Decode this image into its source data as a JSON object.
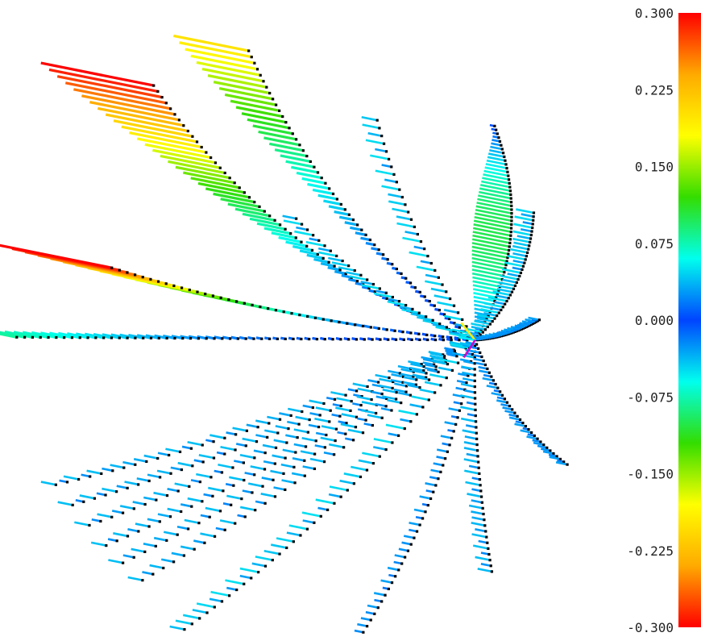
{
  "chart_data": {
    "type": "scatter",
    "title": "",
    "xlabel": "",
    "ylabel": "",
    "grid": false,
    "legend": "none",
    "origin": [
      0,
      0
    ],
    "xlim": [
      -8.5,
      2.6
    ],
    "ylim": [
      -5.2,
      5.6
    ],
    "colorbar": {
      "placement": "right",
      "range": [
        -0.3,
        0.3
      ],
      "ticks": [
        0.3,
        0.225,
        0.15,
        0.075,
        0.0,
        -0.075,
        -0.15,
        -0.225,
        -0.3
      ],
      "tick_labels": [
        "0.300",
        "0.225",
        "0.150",
        "0.075",
        "0.000",
        "-0.075",
        "-0.150",
        "-0.225",
        "-0.300"
      ],
      "colors": [
        "#ff0000",
        "#ffaa00",
        "#ffff00",
        "#33dd00",
        "#00ffee",
        "#0044ff",
        "#00ffee",
        "#33dd00",
        "#ffff00",
        "#ffaa00",
        "#ff0000"
      ]
    },
    "marker_color": "#000000",
    "origin_vectors": [
      {
        "dx": -0.25,
        "dy": 0.3,
        "color": "#ffee00"
      },
      {
        "dx": -0.3,
        "dy": 0.05,
        "color": "#00eeff"
      },
      {
        "dx": -0.2,
        "dy": -0.3,
        "color": "#cc00cc"
      }
    ],
    "series": [
      {
        "end": [
          -5.75,
          4.4
        ],
        "curve": 0.15,
        "n": 60,
        "vmax": 0.3,
        "mode": "tip",
        "wspread": 1.5
      },
      {
        "end": [
          -6.5,
          1.25
        ],
        "curve": 0.05,
        "n": 46,
        "vmax": 0.3,
        "mode": "tip",
        "wspread": 0.8
      },
      {
        "end": [
          -4.05,
          5.0
        ],
        "curve": 0.12,
        "n": 56,
        "vmax": 0.2,
        "mode": "tip",
        "wspread": 1.2
      },
      {
        "end": [
          -3.2,
          2.1
        ],
        "curve": 0.1,
        "n": 28,
        "vmax": 0.05,
        "mode": "const"
      },
      {
        "end": [
          -1.75,
          3.8
        ],
        "curve": 0.08,
        "n": 30,
        "vmax": 0.05,
        "mode": "const"
      },
      {
        "end": [
          0.35,
          3.7
        ],
        "curve": -0.25,
        "n": 58,
        "vmax": 0.1,
        "mode": "mid",
        "wspread": 0.8
      },
      {
        "end": [
          1.05,
          2.2
        ],
        "curve": -0.2,
        "n": 40,
        "vmax": 0.05,
        "mode": "const",
        "dense": true
      },
      {
        "end": [
          1.15,
          0.35
        ],
        "curve": -0.12,
        "n": 38,
        "vmax": 0.03,
        "mode": "const",
        "dense": true
      },
      {
        "end": [
          -8.2,
          0.05
        ],
        "curve": 0.0,
        "n": 58,
        "vmax": 0.08,
        "mode": "tip",
        "wspread": 0.35
      },
      {
        "end": [
          -7.5,
          -2.5
        ],
        "curve": 0.05,
        "n": 38,
        "vmax": 0.04,
        "mode": "const"
      },
      {
        "end": [
          -7.2,
          -2.85
        ],
        "curve": 0.05,
        "n": 38,
        "vmax": 0.04,
        "mode": "const"
      },
      {
        "end": [
          -6.9,
          -3.2
        ],
        "curve": 0.05,
        "n": 36,
        "vmax": 0.04,
        "mode": "const"
      },
      {
        "end": [
          -6.6,
          -3.55
        ],
        "curve": 0.05,
        "n": 36,
        "vmax": 0.04,
        "mode": "const"
      },
      {
        "end": [
          -6.3,
          -3.85
        ],
        "curve": 0.05,
        "n": 34,
        "vmax": 0.04,
        "mode": "const"
      },
      {
        "end": [
          -5.95,
          -4.15
        ],
        "curve": 0.05,
        "n": 34,
        "vmax": 0.04,
        "mode": "const"
      },
      {
        "end": [
          -5.2,
          -5.0
        ],
        "curve": 0.08,
        "n": 44,
        "vmax": 0.05,
        "mode": "const"
      },
      {
        "end": [
          -2.0,
          -5.05
        ],
        "curve": 0.1,
        "n": 44,
        "vmax": 0.03,
        "mode": "const"
      },
      {
        "end": [
          0.3,
          -4.0
        ],
        "curve": -0.05,
        "n": 40,
        "vmax": 0.04,
        "mode": "const"
      },
      {
        "end": [
          1.65,
          -2.15
        ],
        "curve": -0.15,
        "n": 36,
        "vmax": 0.03,
        "mode": "const",
        "dense": true
      }
    ]
  }
}
